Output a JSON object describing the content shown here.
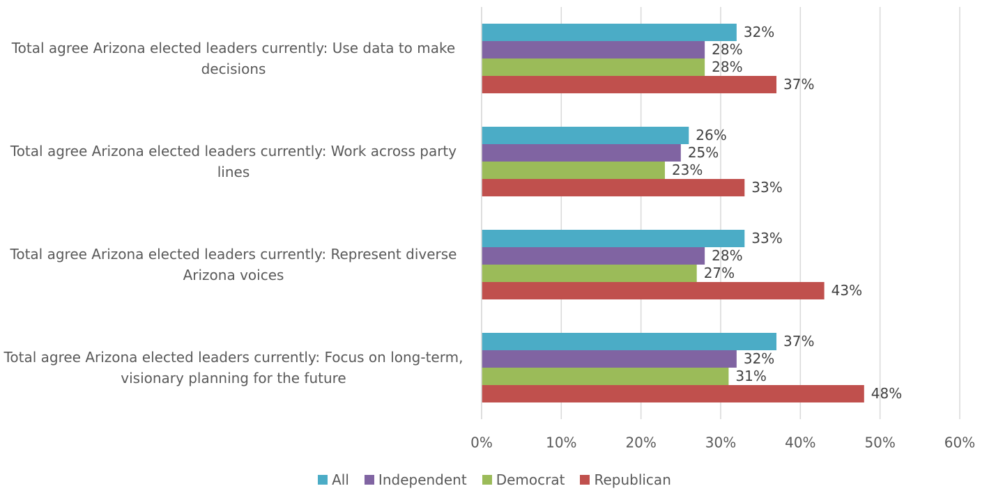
{
  "chart_data": {
    "type": "bar",
    "orientation": "horizontal",
    "categories": [
      "Total agree Arizona elected leaders currently: Use data to make decisions",
      "Total agree Arizona elected leaders currently: Work across party lines",
      "Total agree Arizona elected leaders currently: Represent diverse Arizona voices",
      "Total agree Arizona elected leaders currently: Focus on long-term, visionary planning for the future"
    ],
    "series": [
      {
        "name": "All",
        "color": "#4bacc6",
        "values": [
          32,
          26,
          33,
          37
        ],
        "value_labels": [
          "32%",
          "26%",
          "33%",
          "37%"
        ]
      },
      {
        "name": "Independent",
        "color": "#8064a2",
        "values": [
          28,
          25,
          28,
          32
        ],
        "value_labels": [
          "28%",
          "25%",
          "28%",
          "32%"
        ]
      },
      {
        "name": "Democrat",
        "color": "#9bbb59",
        "values": [
          28,
          23,
          27,
          31
        ],
        "value_labels": [
          "28%",
          "23%",
          "27%",
          "31%"
        ]
      },
      {
        "name": "Republican",
        "color": "#c0504d",
        "values": [
          37,
          33,
          43,
          48
        ],
        "value_labels": [
          "37%",
          "33%",
          "43%",
          "48%"
        ]
      }
    ],
    "xlim": [
      0,
      60
    ],
    "xticks": [
      {
        "value": 0,
        "label": "0%"
      },
      {
        "value": 10,
        "label": "10%"
      },
      {
        "value": 20,
        "label": "20%"
      },
      {
        "value": 30,
        "label": "30%"
      },
      {
        "value": 40,
        "label": "40%"
      },
      {
        "value": 50,
        "label": "50%"
      },
      {
        "value": 60,
        "label": "60%"
      }
    ],
    "grid": true,
    "legend": "bottom"
  }
}
